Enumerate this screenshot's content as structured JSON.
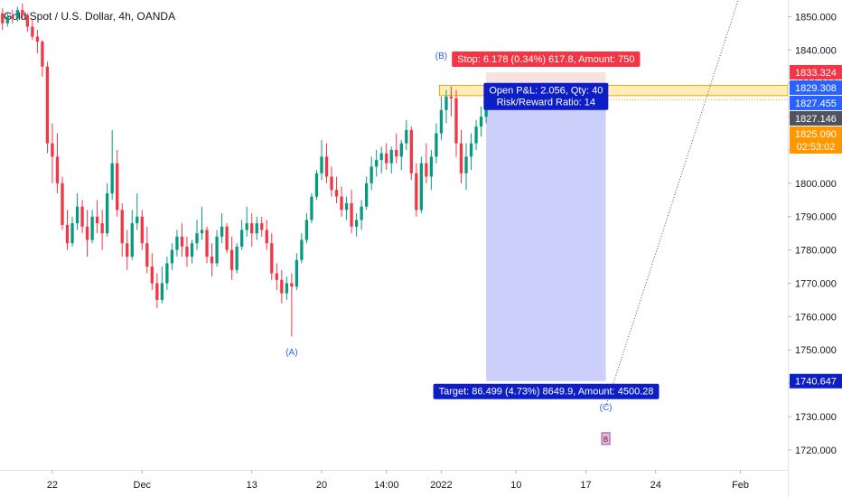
{
  "header": {
    "symbol_title": "Gold Spot / U.S. Dollar, 4h, OANDA"
  },
  "chart_data": {
    "type": "candlestick",
    "title": "Gold Spot / U.S. Dollar, 4h, OANDA",
    "price_scale": {
      "ylim": [
        1714.0,
        1855.0
      ],
      "ticks": [
        1720,
        1730,
        1740,
        1750,
        1760,
        1770,
        1780,
        1790,
        1800,
        1810,
        1820,
        1830,
        1840,
        1850
      ]
    },
    "price_tick_labels": [
      "1720.000",
      "1730.000",
      "1740.000",
      "1750.000",
      "1760.000",
      "1770.000",
      "1780.000",
      "1790.000",
      "1800.000",
      "1810.000",
      "1820.000",
      "1830.000",
      "1840.000",
      "1850.000"
    ],
    "time_axis": {
      "labels": [
        "22",
        "Dec",
        "13",
        "20",
        "14:00",
        "2022",
        "10",
        "17",
        "24",
        "Feb"
      ],
      "label_bars": [
        10,
        28,
        50,
        64,
        77,
        88,
        103,
        117,
        131,
        148
      ],
      "total_bars": 158
    },
    "price_labels": [
      {
        "text": "1833.324",
        "value": 1833.324,
        "color": "#f23645"
      },
      {
        "text": "1829.308",
        "value": 1829.308,
        "color": "#2962ff"
      },
      {
        "text": "1827.455",
        "value": 1827.455,
        "color": "#2962ff"
      },
      {
        "text": "1827.146",
        "value": 1827.146,
        "color": "#50535e"
      },
      {
        "text": "1825.090",
        "value": 1825.09,
        "color": "#ff9800",
        "sub": "02:53:02"
      },
      {
        "text": "1740.647",
        "value": 1740.647,
        "color": "#0d1fc4"
      }
    ],
    "wave_labels": [
      {
        "text": "(A)",
        "bar": 58,
        "value": 1749.5
      },
      {
        "text": "(B)",
        "bar": 88,
        "value": 1838.5
      },
      {
        "text": "(C)",
        "bar": 121,
        "value": 1733.0
      }
    ],
    "short_position": {
      "entry": 1827.146,
      "stop": 1833.324,
      "target": 1740.647,
      "start_bar": 97,
      "end_bar": 121,
      "stop_text": "Stop: 6.178 (0.34%) 617.8, Amount: 750",
      "pnl_text": "Open P&L: 2.056, Qty: 40",
      "rr_text": "Risk/Reward Ratio: 14",
      "target_text": "Target: 86.499 (4.73%) 8649.9, Amount: 4500.28",
      "colors": {
        "stop": "#f23645",
        "target": "#0d1fc4",
        "stop_zone": "#f7e2e2",
        "target_zone": "#cccffa"
      }
    },
    "resistance_zone": {
      "low": 1826.3,
      "high": 1829.4,
      "color": "#ffe082"
    },
    "projection_line": {
      "from_bar": 121,
      "from_value": 1733.0,
      "to_bar": 148,
      "to_value": 1857.0
    },
    "marker": {
      "text": "B",
      "bar": 121,
      "value": 1720.0
    },
    "candles": [
      [
        1851.0,
        1852.5,
        1846.0,
        1848.0
      ],
      [
        1848.0,
        1851.0,
        1847.0,
        1850.0
      ],
      [
        1850.0,
        1852.0,
        1848.0,
        1849.5
      ],
      [
        1849.5,
        1853.0,
        1848.5,
        1852.0
      ],
      [
        1852.0,
        1854.0,
        1849.0,
        1850.5
      ],
      [
        1850.5,
        1851.0,
        1845.5,
        1847.0
      ],
      [
        1847.0,
        1849.0,
        1843.0,
        1844.0
      ],
      [
        1844.0,
        1846.0,
        1839.0,
        1842.5
      ],
      [
        1842.5,
        1843.0,
        1832.0,
        1835.0
      ],
      [
        1835.0,
        1836.5,
        1809.0,
        1812.0
      ],
      [
        1812.0,
        1818.0,
        1800.0,
        1808.0
      ],
      [
        1808.0,
        1815.0,
        1797.0,
        1800.0
      ],
      [
        1800.0,
        1802.0,
        1786.0,
        1787.5
      ],
      [
        1787.5,
        1792.0,
        1780.0,
        1782.0
      ],
      [
        1782.0,
        1790.0,
        1781.0,
        1788.0
      ],
      [
        1788.0,
        1797.0,
        1786.0,
        1793.0
      ],
      [
        1793.0,
        1795.0,
        1785.0,
        1787.0
      ],
      [
        1787.0,
        1792.0,
        1778.0,
        1783.0
      ],
      [
        1783.0,
        1792.0,
        1782.0,
        1790.0
      ],
      [
        1790.0,
        1795.0,
        1785.0,
        1788.0
      ],
      [
        1788.0,
        1792.0,
        1780.0,
        1785.0
      ],
      [
        1785.0,
        1800.0,
        1784.0,
        1797.0
      ],
      [
        1797.0,
        1816.0,
        1795.0,
        1806.0
      ],
      [
        1806.0,
        1810.0,
        1790.0,
        1792.0
      ],
      [
        1792.0,
        1794.0,
        1778.0,
        1782.0
      ],
      [
        1782.0,
        1786.0,
        1774.0,
        1778.0
      ],
      [
        1778.0,
        1792.0,
        1777.0,
        1788.0
      ],
      [
        1788.0,
        1797.0,
        1786.0,
        1790.0
      ],
      [
        1790.0,
        1792.0,
        1780.0,
        1782.0
      ],
      [
        1782.0,
        1787.0,
        1773.0,
        1775.0
      ],
      [
        1775.0,
        1779.0,
        1768.0,
        1770.0
      ],
      [
        1770.0,
        1773.0,
        1762.5,
        1765.0
      ],
      [
        1765.0,
        1775.0,
        1764.0,
        1770.0
      ],
      [
        1770.0,
        1778.0,
        1768.0,
        1776.0
      ],
      [
        1776.0,
        1782.0,
        1774.0,
        1780.0
      ],
      [
        1780.0,
        1786.0,
        1778.0,
        1784.0
      ],
      [
        1784.0,
        1788.0,
        1778.0,
        1781.0
      ],
      [
        1781.0,
        1784.0,
        1775.0,
        1778.0
      ],
      [
        1778.0,
        1783.0,
        1776.0,
        1782.0
      ],
      [
        1782.0,
        1789.0,
        1780.0,
        1785.0
      ],
      [
        1785.0,
        1793.0,
        1783.0,
        1786.0
      ],
      [
        1786.0,
        1787.0,
        1776.0,
        1778.0
      ],
      [
        1778.0,
        1782.0,
        1772.0,
        1776.0
      ],
      [
        1776.0,
        1786.0,
        1775.0,
        1784.0
      ],
      [
        1784.0,
        1791.0,
        1782.0,
        1787.0
      ],
      [
        1787.0,
        1788.0,
        1779.0,
        1780.0
      ],
      [
        1780.0,
        1784.0,
        1771.0,
        1774.0
      ],
      [
        1774.0,
        1782.0,
        1773.0,
        1781.0
      ],
      [
        1781.0,
        1789.0,
        1780.0,
        1786.0
      ],
      [
        1786.0,
        1793.0,
        1784.0,
        1788.0
      ],
      [
        1788.0,
        1791.0,
        1781.0,
        1785.0
      ],
      [
        1785.0,
        1790.0,
        1783.0,
        1788.0
      ],
      [
        1788.0,
        1790.0,
        1784.0,
        1786.0
      ],
      [
        1786.0,
        1789.0,
        1780.0,
        1782.0
      ],
      [
        1782.0,
        1785.0,
        1771.0,
        1773.0
      ],
      [
        1773.0,
        1776.0,
        1768.0,
        1771.0
      ],
      [
        1771.0,
        1774.0,
        1764.0,
        1767.0
      ],
      [
        1767.0,
        1772.0,
        1765.0,
        1770.0
      ],
      [
        1770.0,
        1773.0,
        1754.0,
        1769.0
      ],
      [
        1769.0,
        1779.0,
        1768.0,
        1777.0
      ],
      [
        1777.0,
        1785.0,
        1776.0,
        1783.0
      ],
      [
        1783.0,
        1791.0,
        1782.0,
        1789.0
      ],
      [
        1789.0,
        1797.0,
        1788.0,
        1796.0
      ],
      [
        1796.0,
        1804.0,
        1795.0,
        1803.0
      ],
      [
        1803.0,
        1813.0,
        1801.0,
        1808.0
      ],
      [
        1808.0,
        1812.0,
        1800.0,
        1802.0
      ],
      [
        1802.0,
        1805.0,
        1796.0,
        1798.0
      ],
      [
        1798.0,
        1802.0,
        1794.0,
        1796.0
      ],
      [
        1796.0,
        1799.0,
        1790.0,
        1792.0
      ],
      [
        1792.0,
        1796.0,
        1789.0,
        1794.0
      ],
      [
        1794.0,
        1798.0,
        1785.0,
        1787.0
      ],
      [
        1787.0,
        1791.0,
        1784.0,
        1789.0
      ],
      [
        1789.0,
        1795.0,
        1786.0,
        1793.0
      ],
      [
        1793.0,
        1802.0,
        1792.0,
        1800.0
      ],
      [
        1800.0,
        1808.0,
        1798.0,
        1805.0
      ],
      [
        1805.0,
        1810.0,
        1802.0,
        1807.0
      ],
      [
        1807.0,
        1811.0,
        1803.0,
        1809.0
      ],
      [
        1809.0,
        1812.0,
        1804.0,
        1806.0
      ],
      [
        1806.0,
        1811.0,
        1803.0,
        1810.0
      ],
      [
        1810.0,
        1815.0,
        1806.0,
        1808.0
      ],
      [
        1808.0,
        1813.0,
        1804.0,
        1812.0
      ],
      [
        1812.0,
        1819.0,
        1810.0,
        1816.0
      ],
      [
        1816.0,
        1817.0,
        1801.0,
        1803.0
      ],
      [
        1803.0,
        1806.0,
        1790.0,
        1792.0
      ],
      [
        1792.0,
        1808.0,
        1791.0,
        1806.0
      ],
      [
        1806.0,
        1812.0,
        1800.0,
        1802.0
      ],
      [
        1802.0,
        1810.0,
        1798.0,
        1808.0
      ],
      [
        1808.0,
        1818.0,
        1806.0,
        1815.0
      ],
      [
        1815.0,
        1826.0,
        1813.0,
        1822.0
      ],
      [
        1822.0,
        1828.0,
        1818.0,
        1826.0
      ],
      [
        1826.0,
        1829.0,
        1820.0,
        1825.5
      ],
      [
        1825.5,
        1828.0,
        1808.0,
        1812.0
      ],
      [
        1812.0,
        1816.0,
        1800.0,
        1803.0
      ],
      [
        1803.0,
        1812.0,
        1798.0,
        1808.0
      ],
      [
        1808.0,
        1815.0,
        1804.0,
        1812.0
      ],
      [
        1812.0,
        1819.0,
        1810.0,
        1817.0
      ],
      [
        1817.0,
        1823.0,
        1814.0,
        1820.0
      ],
      [
        1820.0,
        1827.0,
        1818.0,
        1825.09
      ]
    ]
  }
}
